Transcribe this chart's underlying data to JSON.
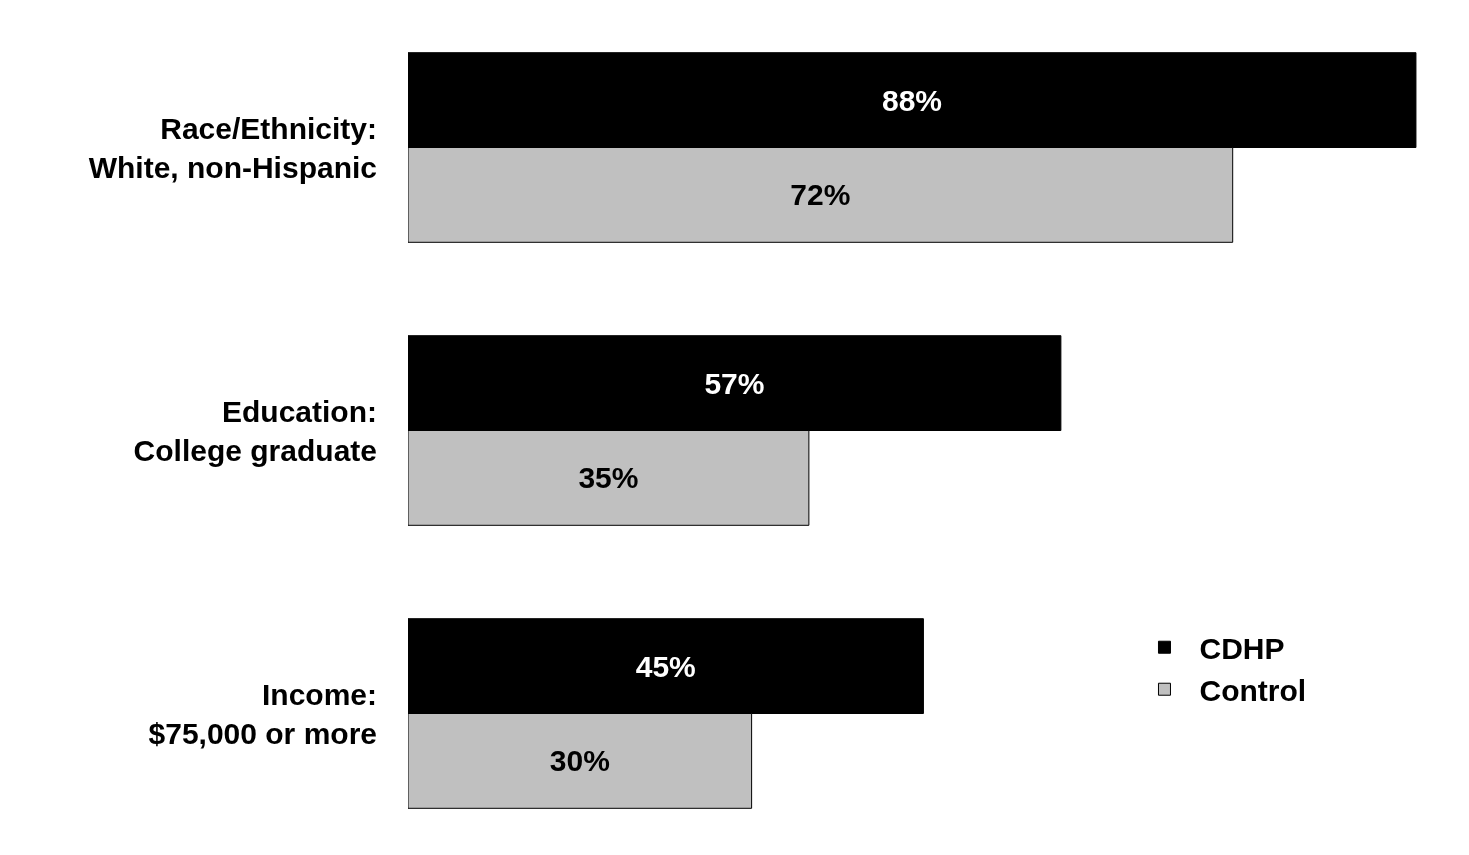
{
  "chart_data": {
    "type": "bar",
    "orientation": "horizontal",
    "categories": [
      "Race/Ethnicity:\nWhite, non-Hispanic",
      "Education:\nCollege graduate",
      "Income:\n$75,000 or more"
    ],
    "series": [
      {
        "name": "CDHP",
        "color": "#000000",
        "values": [
          88,
          57,
          45
        ],
        "value_labels": [
          "88%",
          "57%",
          "45%"
        ]
      },
      {
        "name": "Control",
        "color": "#c0c0c0",
        "values": [
          72,
          35,
          30
        ],
        "value_labels": [
          "72%",
          "35%",
          "30%"
        ]
      }
    ],
    "legend": "right"
  }
}
